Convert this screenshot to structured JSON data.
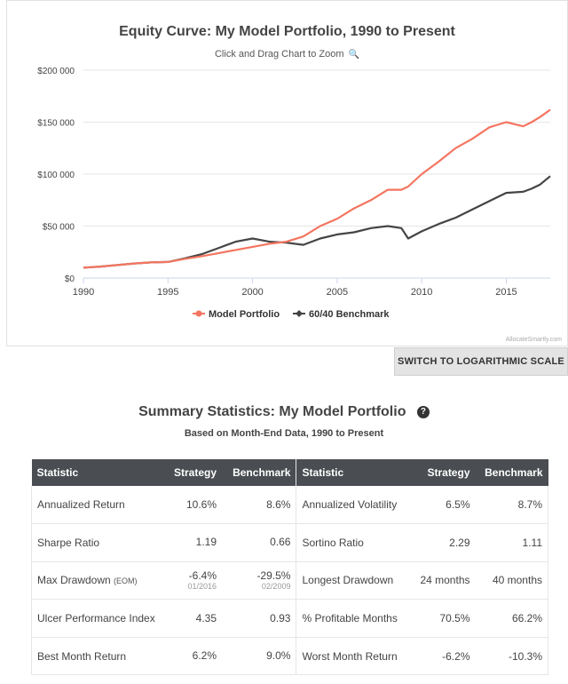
{
  "chart": {
    "title": "Equity Curve: My Model Portfolio, 1990 to Present",
    "subtitle": "Click and Drag Chart to Zoom",
    "zoom_icon_glyph": "🔍",
    "credit": "AllocateSmartly.com",
    "log_button": "SWITCH TO LOGARITHMIC SCALE"
  },
  "chart_data": {
    "type": "line",
    "title": "Equity Curve: My Model Portfolio, 1990 to Present",
    "xlabel": "",
    "ylabel": "",
    "xlim": [
      1990,
      2017.6
    ],
    "ylim": [
      0,
      200000
    ],
    "x_ticks": [
      "1990",
      "1995",
      "2000",
      "2005",
      "2010",
      "2015"
    ],
    "y_ticks": [
      "$0",
      "$50 000",
      "$100 000",
      "$150 000",
      "$200 000"
    ],
    "x": [
      1990,
      1991,
      1992,
      1993,
      1994,
      1995,
      1996,
      1997,
      1998,
      1999,
      2000,
      2001,
      2002,
      2003,
      2004,
      2005,
      2006,
      2007,
      2008,
      2008.8,
      2009.2,
      2010,
      2011,
      2012,
      2013,
      2014,
      2015,
      2016,
      2016.5,
      2017,
      2017.6
    ],
    "series": [
      {
        "name": "Model Portfolio",
        "color": "#f47560",
        "values": [
          10000,
          11000,
          12500,
          14000,
          15000,
          15500,
          18500,
          21000,
          24000,
          27000,
          30000,
          33000,
          35000,
          40000,
          50000,
          57000,
          67000,
          75000,
          85000,
          85000,
          88000,
          100000,
          112000,
          125000,
          134000,
          145000,
          150000,
          146000,
          150000,
          155000,
          162000
        ]
      },
      {
        "name": "60/40 Benchmark",
        "color": "#444444",
        "values": [
          10000,
          11000,
          12500,
          14000,
          15000,
          15500,
          19000,
          23000,
          29000,
          35000,
          38000,
          35000,
          34000,
          32000,
          38000,
          42000,
          44000,
          48000,
          50000,
          48000,
          38000,
          45000,
          52000,
          58000,
          66000,
          74000,
          82000,
          83000,
          86000,
          90000,
          98000
        ]
      }
    ],
    "legend_position": "bottom"
  },
  "stats": {
    "title": "Summary Statistics: My Model Portfolio",
    "help_icon_glyph": "?",
    "subtitle": "Based on Month-End Data, 1990 to Present",
    "headers": {
      "statistic": "Statistic",
      "strategy": "Strategy",
      "benchmark": "Benchmark",
      "statistic2": "Statistic",
      "strategy2": "Strategy",
      "benchmark2": "Benchmark"
    },
    "rows": [
      {
        "left_label": "Annualized Return",
        "left_note": "",
        "left_strategy": "10.6%",
        "left_strategy_date": "",
        "left_benchmark": "8.6%",
        "left_benchmark_date": "",
        "right_label": "Annualized Volatility",
        "right_strategy": "6.5%",
        "right_benchmark": "8.7%"
      },
      {
        "left_label": "Sharpe Ratio",
        "left_note": "",
        "left_strategy": "1.19",
        "left_strategy_date": "",
        "left_benchmark": "0.66",
        "left_benchmark_date": "",
        "right_label": "Sortino Ratio",
        "right_strategy": "2.29",
        "right_benchmark": "1.11"
      },
      {
        "left_label": "Max Drawdown",
        "left_note": "(EOM)",
        "left_strategy": "-6.4%",
        "left_strategy_date": "01/2016",
        "left_benchmark": "-29.5%",
        "left_benchmark_date": "02/2009",
        "right_label": "Longest Drawdown",
        "right_strategy": "24 months",
        "right_benchmark": "40 months"
      },
      {
        "left_label": "Ulcer Performance Index",
        "left_note": "",
        "left_strategy": "4.35",
        "left_strategy_date": "",
        "left_benchmark": "0.93",
        "left_benchmark_date": "",
        "right_label": "% Profitable Months",
        "right_strategy": "70.5%",
        "right_benchmark": "66.2%"
      },
      {
        "left_label": "Best Month Return",
        "left_note": "",
        "left_strategy": "6.2%",
        "left_strategy_date": "",
        "left_benchmark": "9.0%",
        "left_benchmark_date": "",
        "right_label": "Worst Month Return",
        "right_strategy": "-6.2%",
        "right_benchmark": "-10.3%"
      }
    ]
  }
}
